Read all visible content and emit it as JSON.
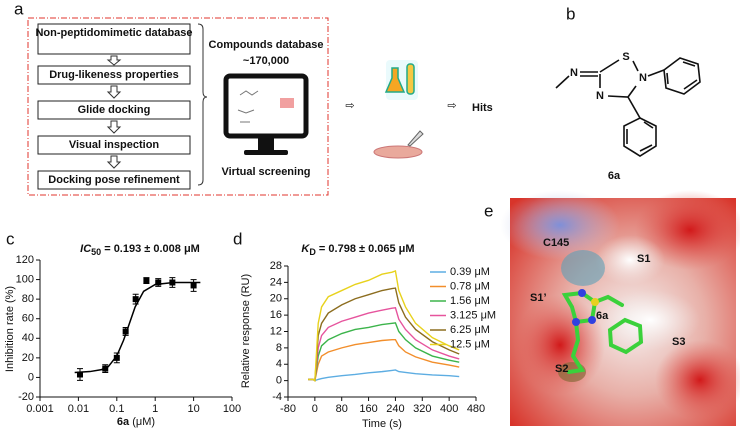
{
  "panels": {
    "a": {
      "label": "a",
      "steps": [
        "Non-peptidomimetic database",
        "Drug-likeness properties",
        "Glide docking",
        "Visual inspection",
        "Docking pose refinement"
      ],
      "database": [
        "Compounds database",
        "~170,000"
      ],
      "screening": "Virtual screening",
      "hits": "Hits"
    },
    "b": {
      "label": "b",
      "atoms": [
        "N",
        "S",
        "N",
        "N"
      ],
      "compound": "6a"
    },
    "c": {
      "label": "c"
    },
    "d": {
      "label": "d"
    },
    "e": {
      "label": "e",
      "labels": [
        "C145",
        "S1",
        "S1’",
        "6a",
        "S3",
        "S2"
      ]
    }
  },
  "chart_data": [
    {
      "type": "scatter",
      "title": {
        "italic": "IC",
        "sub": "50",
        "rest": " = 0.193  ± 0.008 μM"
      },
      "xlabel": {
        "bold": "6a",
        "rest": " (μM)"
      },
      "ylabel": "Inhibition rate (%)",
      "log_x": true,
      "x": [
        0.011,
        0.05,
        0.1,
        0.17,
        0.31,
        0.59,
        1.2,
        2.8,
        10
      ],
      "values": [
        3,
        9,
        20,
        47,
        80,
        99,
        97,
        97,
        94
      ],
      "errors": [
        6,
        4,
        5,
        4,
        5,
        3,
        4,
        5,
        6
      ],
      "fit": {
        "x": [
          0.008,
          0.02,
          0.04,
          0.06,
          0.1,
          0.15,
          0.2,
          0.3,
          0.5,
          1,
          3,
          15
        ],
        "values": [
          5,
          6,
          8,
          11,
          22,
          38,
          52,
          72,
          88,
          95,
          97,
          97
        ]
      },
      "color": "#000000",
      "xlim": [
        0.001,
        100
      ],
      "xticks": [
        0.001,
        0.01,
        0.1,
        1,
        10,
        100
      ],
      "ylim": [
        -20,
        120
      ],
      "yticks": [
        -20,
        0,
        20,
        40,
        60,
        80,
        100,
        120
      ]
    },
    {
      "type": "line",
      "title": {
        "italic": "K",
        "sub": "D",
        "rest": " = 0.798 ± 0.065 μM"
      },
      "xlabel": "Time (s)",
      "ylabel": "Relative response (RU)",
      "x": [
        -20,
        -5,
        0,
        10,
        20,
        40,
        80,
        120,
        160,
        200,
        230,
        240,
        250,
        270,
        300,
        350,
        400,
        430
      ],
      "series": [
        {
          "name": "0.39 μM",
          "color": "#5dade2",
          "values": [
            0.3,
            0.3,
            0,
            0.3,
            0.5,
            0.8,
            1.2,
            1.5,
            1.9,
            2.2,
            2.5,
            2.6,
            2.2,
            2,
            1.7,
            1.4,
            1.2,
            1
          ]
        },
        {
          "name": "0.78 μM",
          "color": "#f28e2b",
          "values": [
            0.3,
            0.3,
            0,
            4,
            6,
            7,
            8,
            8.8,
            9.3,
            9.8,
            10,
            10,
            8.5,
            7,
            5.8,
            4.5,
            3.8,
            3.3
          ]
        },
        {
          "name": "1.56 μM",
          "color": "#3cb44b",
          "values": [
            0.3,
            0.3,
            0,
            6,
            8.5,
            10,
            11.5,
            12.5,
            13,
            13.7,
            14,
            14.1,
            12,
            10,
            8,
            6,
            5,
            4.5
          ]
        },
        {
          "name": "3.125 μM",
          "color": "#e6549d",
          "values": [
            0.3,
            0.3,
            0,
            8,
            11,
            13,
            14.5,
            15.5,
            16.5,
            17.2,
            17.7,
            17.8,
            15,
            12.5,
            10,
            7.5,
            6,
            5.3
          ]
        },
        {
          "name": "6.25 μM",
          "color": "#8c6d1f",
          "values": [
            0.3,
            0.3,
            0,
            11,
            14,
            16.5,
            18.5,
            20,
            21,
            22,
            22.5,
            22.6,
            19,
            15.5,
            12.5,
            9.5,
            7.5,
            6.5
          ]
        },
        {
          "name": "12.5 μM",
          "color": "#e8d21d",
          "values": [
            0.3,
            0.3,
            0,
            14,
            18,
            20.5,
            22,
            23.5,
            24.5,
            26,
            26.5,
            26.8,
            22,
            18,
            14,
            10.5,
            8.5,
            7.5
          ]
        }
      ],
      "legend": "right",
      "xlim": [
        -80,
        480
      ],
      "xticks": [
        -80,
        0,
        80,
        160,
        240,
        320,
        400,
        480
      ],
      "ylim": [
        -4,
        28
      ],
      "yticks": [
        -4,
        0,
        4,
        8,
        12,
        16,
        20,
        24,
        28
      ]
    }
  ]
}
